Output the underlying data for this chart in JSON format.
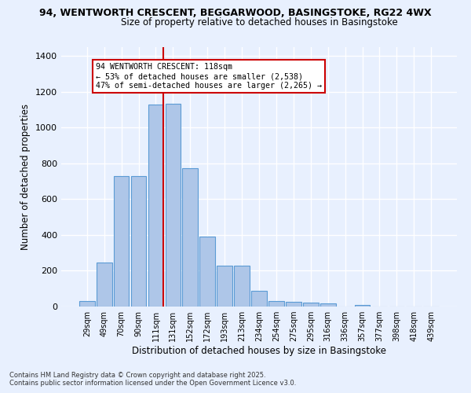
{
  "title1": "94, WENTWORTH CRESCENT, BEGGARWOOD, BASINGSTOKE, RG22 4WX",
  "title2": "Size of property relative to detached houses in Basingstoke",
  "xlabel": "Distribution of detached houses by size in Basingstoke",
  "ylabel": "Number of detached properties",
  "categories": [
    "29sqm",
    "49sqm",
    "70sqm",
    "90sqm",
    "111sqm",
    "131sqm",
    "152sqm",
    "172sqm",
    "193sqm",
    "213sqm",
    "234sqm",
    "254sqm",
    "275sqm",
    "295sqm",
    "316sqm",
    "336sqm",
    "357sqm",
    "377sqm",
    "398sqm",
    "418sqm",
    "439sqm"
  ],
  "values": [
    30,
    245,
    730,
    730,
    1130,
    1135,
    775,
    390,
    230,
    230,
    90,
    30,
    25,
    22,
    18,
    0,
    8,
    0,
    0,
    0,
    0
  ],
  "bar_color": "#aec6e8",
  "bar_edge_color": "#5b9bd5",
  "background_color": "#e8f0fe",
  "grid_color": "#ffffff",
  "red_line_index": 4.45,
  "annotation_text": "94 WENTWORTH CRESCENT: 118sqm\n← 53% of detached houses are smaller (2,538)\n47% of semi-detached houses are larger (2,265) →",
  "annotation_box_color": "#ffffff",
  "annotation_box_edge": "#cc0000",
  "footnote1": "Contains HM Land Registry data © Crown copyright and database right 2025.",
  "footnote2": "Contains public sector information licensed under the Open Government Licence v3.0.",
  "ylim": [
    0,
    1450
  ],
  "yticks": [
    0,
    200,
    400,
    600,
    800,
    1000,
    1200,
    1400
  ]
}
